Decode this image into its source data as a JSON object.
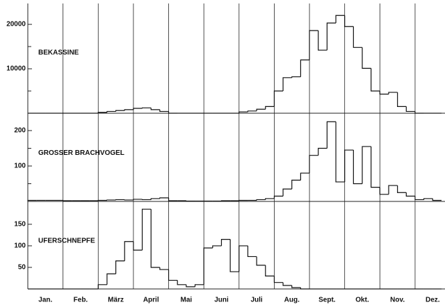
{
  "x_axis": {
    "xlim": [
      0,
      11.85
    ],
    "xticks": [
      {
        "value": 0.5,
        "label": "Jan."
      },
      {
        "value": 1.5,
        "label": "Feb."
      },
      {
        "value": 2.5,
        "label": "März"
      },
      {
        "value": 3.5,
        "label": "April"
      },
      {
        "value": 4.5,
        "label": "Mai"
      },
      {
        "value": 5.5,
        "label": "Juni"
      },
      {
        "value": 6.5,
        "label": "Juli"
      },
      {
        "value": 7.5,
        "label": "Aug."
      },
      {
        "value": 8.5,
        "label": "Sept."
      },
      {
        "value": 9.5,
        "label": "Okt."
      },
      {
        "value": 10.5,
        "label": "Nov."
      },
      {
        "value": 11.5,
        "label": "Dez."
      }
    ],
    "grid": [
      0,
      1,
      2,
      3,
      4,
      5,
      6,
      7,
      8,
      9,
      10,
      11
    ]
  },
  "chart_data": [
    {
      "type": "histogram",
      "label": "BEKASSINE",
      "bins": [
        0,
        0.25,
        0.5,
        0.75,
        1,
        1.25,
        1.5,
        1.75,
        2,
        2.25,
        2.5,
        2.75,
        3,
        3.25,
        3.5,
        3.75,
        4,
        4.25,
        4.5,
        4.75,
        5,
        5.25,
        5.5,
        5.75,
        6,
        6.25,
        6.5,
        6.75,
        7,
        7.25,
        7.5,
        7.75,
        8,
        8.25,
        8.5,
        8.75,
        9,
        9.25,
        9.5,
        9.75,
        10,
        10.25,
        10.5,
        10.75,
        11,
        11.25,
        11.5,
        11.75
      ],
      "values": [
        0,
        0,
        0,
        0,
        0,
        0,
        0,
        0,
        200,
        400,
        600,
        800,
        1100,
        1200,
        800,
        400,
        0,
        0,
        0,
        0,
        0,
        0,
        0,
        0,
        300,
        500,
        900,
        1500,
        5000,
        8000,
        8200,
        12000,
        18600,
        14200,
        20300,
        22000,
        19500,
        14800,
        10100,
        5000,
        4300,
        4700,
        1500,
        400,
        0,
        0,
        0
      ],
      "ylim": [
        0,
        24700
      ],
      "yticks": [
        10000,
        20000
      ],
      "yminor": [
        5000,
        15000
      ]
    },
    {
      "type": "histogram",
      "label": "GROSSER BRACHVOGEL",
      "bins": [
        0,
        0.25,
        0.5,
        0.75,
        1,
        1.25,
        1.5,
        1.75,
        2,
        2.25,
        2.5,
        2.75,
        3,
        3.25,
        3.5,
        3.75,
        4,
        4.25,
        4.5,
        4.75,
        5,
        5.25,
        5.5,
        5.75,
        6,
        6.25,
        6.5,
        6.75,
        7,
        7.25,
        7.5,
        7.75,
        8,
        8.25,
        8.5,
        8.75,
        9,
        9.25,
        9.5,
        9.75,
        10,
        10.25,
        10.5,
        10.75,
        11,
        11.25,
        11.5,
        11.75
      ],
      "values": [
        3,
        3,
        3,
        3,
        2,
        2,
        2,
        2,
        3,
        4,
        5,
        4,
        6,
        5,
        8,
        10,
        2,
        2,
        1,
        1,
        1,
        1,
        2,
        2,
        3,
        3,
        5,
        8,
        15,
        35,
        60,
        80,
        130,
        150,
        225,
        55,
        145,
        50,
        155,
        40,
        20,
        45,
        25,
        15,
        5,
        8,
        3
      ],
      "ylim": [
        0,
        249
      ],
      "yticks": [
        100,
        200
      ],
      "yminor": [
        50,
        150
      ]
    },
    {
      "type": "histogram",
      "label": "UFERSCHNEPFE",
      "bins": [
        0,
        0.25,
        0.5,
        0.75,
        1,
        1.25,
        1.5,
        1.75,
        2,
        2.25,
        2.5,
        2.75,
        3,
        3.25,
        3.5,
        3.75,
        4,
        4.25,
        4.5,
        4.75,
        5,
        5.25,
        5.5,
        5.75,
        6,
        6.25,
        6.5,
        6.75,
        7,
        7.25,
        7.5,
        7.75,
        8,
        8.25,
        8.5,
        8.75,
        9,
        9.25,
        9.5,
        9.75,
        10,
        10.25,
        10.5,
        10.75,
        11,
        11.25,
        11.5,
        11.75
      ],
      "values": [
        0,
        0,
        0,
        0,
        0,
        0,
        0,
        0,
        10,
        35,
        65,
        110,
        90,
        185,
        50,
        45,
        20,
        10,
        5,
        10,
        95,
        100,
        115,
        40,
        100,
        75,
        55,
        30,
        15,
        8,
        3,
        0,
        0,
        0,
        0,
        0,
        0,
        0,
        0,
        0,
        0,
        0,
        0,
        0,
        0,
        0,
        0
      ],
      "ylim": [
        0,
        203
      ],
      "yticks": [
        50,
        100,
        150
      ],
      "yminor": []
    }
  ]
}
